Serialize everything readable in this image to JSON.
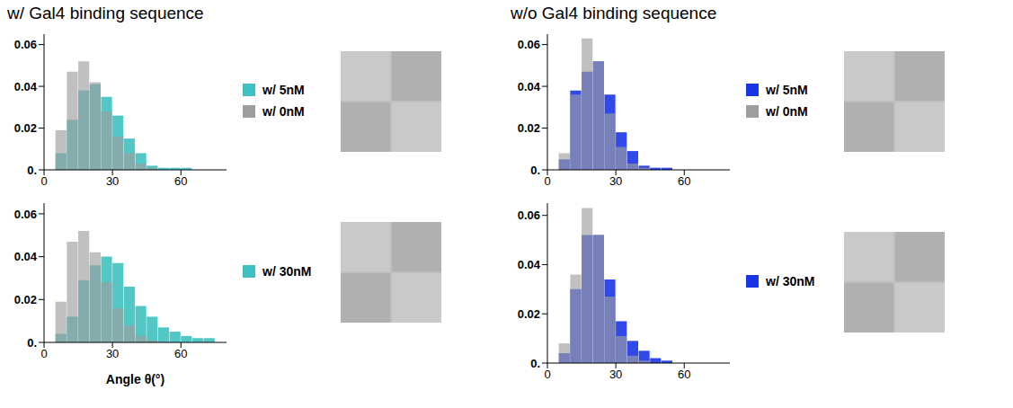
{
  "chart_data": [
    {
      "type": "bar",
      "title": "w/ Gal4 binding sequence",
      "bins": [
        0,
        5,
        10,
        15,
        20,
        25,
        30,
        35,
        40,
        45,
        50,
        55,
        60,
        65,
        70,
        75,
        80
      ],
      "series": [
        {
          "name": "w/ 5nM",
          "color": "#40c0c0",
          "values": [
            0,
            0.008,
            0.024,
            0.038,
            0.041,
            0.035,
            0.026,
            0.015,
            0.008,
            0.002,
            0.001,
            0.001,
            0.001,
            0,
            0,
            0
          ]
        },
        {
          "name": "w/ 0nM",
          "color": "#9e9e9e",
          "values": [
            0,
            0.019,
            0.047,
            0.052,
            0.042,
            0.028,
            0.016,
            0.008,
            0.003,
            0.001,
            0,
            0,
            0,
            0,
            0,
            0
          ]
        }
      ],
      "xlim": [
        0,
        80
      ],
      "xticks": [
        0,
        30,
        60
      ],
      "ylim": [
        0,
        0.065
      ],
      "yticks": [
        {
          "value": 0,
          "label": "0."
        },
        0.02,
        0.04,
        0.06
      ],
      "legend": "right"
    },
    {
      "type": "bar",
      "x_label": "Angle θ(°)",
      "bins": [
        0,
        5,
        10,
        15,
        20,
        25,
        30,
        35,
        40,
        45,
        50,
        55,
        60,
        65,
        70,
        75,
        80
      ],
      "series": [
        {
          "name": "w/ 30nM",
          "color": "#40c0c0",
          "values": [
            0,
            0.004,
            0.012,
            0.029,
            0.036,
            0.04,
            0.037,
            0.026,
            0.017,
            0.012,
            0.007,
            0.005,
            0.003,
            0.002,
            0.002,
            0
          ]
        },
        {
          "color": "#9e9e9e",
          "values": [
            0,
            0.019,
            0.047,
            0.052,
            0.042,
            0.028,
            0.016,
            0.008,
            0.003,
            0.001,
            0,
            0,
            0,
            0,
            0,
            0
          ]
        }
      ],
      "xlim": [
        0,
        80
      ],
      "xticks": [
        0,
        30,
        60
      ],
      "ylim": [
        0,
        0.065
      ],
      "yticks": [
        {
          "value": 0,
          "label": "0."
        },
        0.02,
        0.04,
        0.06
      ],
      "legend": "right"
    },
    {
      "type": "bar",
      "title": "w/o Gal4 binding sequence",
      "bins": [
        0,
        5,
        10,
        15,
        20,
        25,
        30,
        35,
        40,
        45,
        50,
        55,
        60,
        65,
        70,
        75,
        80
      ],
      "series": [
        {
          "name": "w/ 5nM",
          "color": "#1a35e6",
          "values": [
            0,
            0.005,
            0.038,
            0.047,
            0.052,
            0.036,
            0.018,
            0.009,
            0.002,
            0.001,
            0.001,
            0,
            0,
            0,
            0,
            0
          ]
        },
        {
          "name": "w/ 0nM",
          "color": "#9e9e9e",
          "values": [
            0,
            0.008,
            0.036,
            0.063,
            0.052,
            0.027,
            0.011,
            0.003,
            0.001,
            0,
            0,
            0,
            0,
            0,
            0,
            0
          ]
        }
      ],
      "xlim": [
        0,
        80
      ],
      "xticks": [
        0,
        30,
        60
      ],
      "ylim": [
        0,
        0.065
      ],
      "yticks": [
        {
          "value": 0,
          "label": "0."
        },
        0.02,
        0.04,
        0.06
      ],
      "legend": "right"
    },
    {
      "type": "bar",
      "bins": [
        0,
        5,
        10,
        15,
        20,
        25,
        30,
        35,
        40,
        45,
        50,
        55,
        60,
        65,
        70,
        75,
        80
      ],
      "series": [
        {
          "name": "w/ 30nM",
          "color": "#1a35e6",
          "values": [
            0,
            0.004,
            0.03,
            0.052,
            0.052,
            0.034,
            0.017,
            0.009,
            0.005,
            0.002,
            0.001,
            0,
            0,
            0,
            0,
            0
          ]
        },
        {
          "color": "#9e9e9e",
          "values": [
            0,
            0.008,
            0.036,
            0.063,
            0.052,
            0.027,
            0.011,
            0.003,
            0.001,
            0,
            0,
            0,
            0,
            0,
            0,
            0
          ]
        }
      ],
      "xlim": [
        0,
        80
      ],
      "xticks": [
        0,
        30,
        60
      ],
      "ylim": [
        0,
        0.065
      ],
      "yticks": [
        {
          "value": 0,
          "label": "0."
        },
        0.02,
        0.04,
        0.06
      ],
      "legend": "right"
    }
  ]
}
